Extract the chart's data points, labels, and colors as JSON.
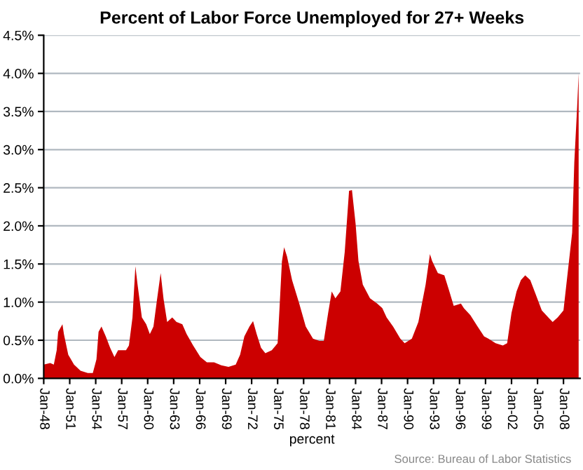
{
  "chart_data": {
    "type": "area",
    "title": "Percent of Labor Force Unemployed for 27+ Weeks",
    "xlabel": "percent",
    "annotations": [
      "Source: Bureau of Labor Statistics"
    ],
    "x": [
      "1948-01",
      "1948-10",
      "1949-03",
      "1949-07",
      "1949-09",
      "1950-03",
      "1950-05",
      "1950-11",
      "1951-07",
      "1952-04",
      "1953-02",
      "1953-09",
      "1954-02",
      "1954-05",
      "1954-09",
      "1955-03",
      "1955-09",
      "1956-03",
      "1956-08",
      "1957-07",
      "1957-11",
      "1958-04",
      "1958-08",
      "1958-11",
      "1959-05",
      "1959-11",
      "1960-04",
      "1960-09",
      "1961-02",
      "1961-07",
      "1961-11",
      "1962-04",
      "1962-11",
      "1963-05",
      "1964-01",
      "1964-07",
      "1965-04",
      "1966-02",
      "1966-11",
      "1967-09",
      "1968-07",
      "1969-05",
      "1970-03",
      "1970-09",
      "1971-03",
      "1971-10",
      "1972-03",
      "1972-08",
      "1973-02",
      "1973-08",
      "1974-05",
      "1975-01",
      "1975-04",
      "1975-07",
      "1975-10",
      "1976-02",
      "1976-09",
      "1977-07",
      "1978-04",
      "1979-02",
      "1979-11",
      "1980-05",
      "1980-11",
      "1981-04",
      "1981-09",
      "1982-04",
      "1982-10",
      "1983-04",
      "1983-08",
      "1984-01",
      "1984-05",
      "1984-11",
      "1985-09",
      "1986-07",
      "1987-02",
      "1987-08",
      "1988-05",
      "1989-03",
      "1989-09",
      "1990-07",
      "1991-04",
      "1992-02",
      "1992-08",
      "1992-11",
      "1993-07",
      "1994-04",
      "1994-10",
      "1995-05",
      "1996-03",
      "1996-07",
      "1997-04",
      "1998-02",
      "1998-11",
      "1999-05",
      "2000-03",
      "2001-01",
      "2001-07",
      "2002-01",
      "2002-08",
      "2003-02",
      "2003-08",
      "2004-03",
      "2004-09",
      "2005-07",
      "2006-04",
      "2006-10",
      "2007-05",
      "2008-01",
      "2008-05",
      "2009-01",
      "2009-04",
      "2009-08",
      "2009-10"
    ],
    "series": [
      {
        "color": "#cc0000",
        "values": [
          0.18,
          0.2,
          0.18,
          0.37,
          0.61,
          0.71,
          0.58,
          0.31,
          0.18,
          0.1,
          0.07,
          0.07,
          0.25,
          0.61,
          0.68,
          0.55,
          0.4,
          0.28,
          0.37,
          0.37,
          0.43,
          0.8,
          1.47,
          1.23,
          0.8,
          0.71,
          0.58,
          0.68,
          1.04,
          1.38,
          1.04,
          0.74,
          0.8,
          0.74,
          0.71,
          0.58,
          0.43,
          0.28,
          0.21,
          0.21,
          0.17,
          0.15,
          0.18,
          0.31,
          0.55,
          0.68,
          0.75,
          0.58,
          0.4,
          0.33,
          0.37,
          0.46,
          0.98,
          1.53,
          1.72,
          1.6,
          1.29,
          0.98,
          0.68,
          0.52,
          0.49,
          0.49,
          0.86,
          1.14,
          1.05,
          1.14,
          1.66,
          2.46,
          2.47,
          2.03,
          1.54,
          1.23,
          1.05,
          0.98,
          0.92,
          0.8,
          0.68,
          0.52,
          0.46,
          0.52,
          0.74,
          1.23,
          1.63,
          1.54,
          1.38,
          1.35,
          1.17,
          0.95,
          0.98,
          0.92,
          0.83,
          0.68,
          0.55,
          0.52,
          0.46,
          0.43,
          0.46,
          0.86,
          1.14,
          1.29,
          1.35,
          1.29,
          1.14,
          0.89,
          0.8,
          0.74,
          0.8,
          0.89,
          1.23,
          1.91,
          2.83,
          3.57,
          4.0
        ]
      }
    ],
    "xlim": [
      "1948-01",
      "2009-12"
    ],
    "xticks": [
      {
        "value": "1948-01",
        "label": "Jan-48"
      },
      {
        "value": "1951-01",
        "label": "Jan-51"
      },
      {
        "value": "1954-01",
        "label": "Jan-54"
      },
      {
        "value": "1957-01",
        "label": "Jan-57"
      },
      {
        "value": "1960-01",
        "label": "Jan-60"
      },
      {
        "value": "1963-01",
        "label": "Jan-63"
      },
      {
        "value": "1966-01",
        "label": "Jan-66"
      },
      {
        "value": "1969-01",
        "label": "Jan-69"
      },
      {
        "value": "1972-01",
        "label": "Jan-72"
      },
      {
        "value": "1975-01",
        "label": "Jan-75"
      },
      {
        "value": "1978-01",
        "label": "Jan-78"
      },
      {
        "value": "1981-01",
        "label": "Jan-81"
      },
      {
        "value": "1984-01",
        "label": "Jan-84"
      },
      {
        "value": "1987-01",
        "label": "Jan-87"
      },
      {
        "value": "1990-01",
        "label": "Jan-90"
      },
      {
        "value": "1993-01",
        "label": "Jan-93"
      },
      {
        "value": "1996-01",
        "label": "Jan-96"
      },
      {
        "value": "1999-01",
        "label": "Jan-99"
      },
      {
        "value": "2002-01",
        "label": "Jan-02"
      },
      {
        "value": "2005-01",
        "label": "Jan-05"
      },
      {
        "value": "2008-01",
        "label": "Jan-08"
      }
    ],
    "ylim": [
      0,
      4.5
    ],
    "yticks": [
      {
        "value": 0,
        "label": "0.0%"
      },
      {
        "value": 0.5,
        "label": "0.5%"
      },
      {
        "value": 1,
        "label": "1.0%"
      },
      {
        "value": 1.5,
        "label": "1.5%"
      },
      {
        "value": 2,
        "label": "2.0%"
      },
      {
        "value": 2.5,
        "label": "2.5%"
      },
      {
        "value": 3,
        "label": "3.0%"
      },
      {
        "value": 3.5,
        "label": "3.5%"
      },
      {
        "value": 4,
        "label": "4.0%"
      },
      {
        "value": 4.5,
        "label": "4.5%"
      }
    ],
    "grid": "y",
    "legend": false
  }
}
